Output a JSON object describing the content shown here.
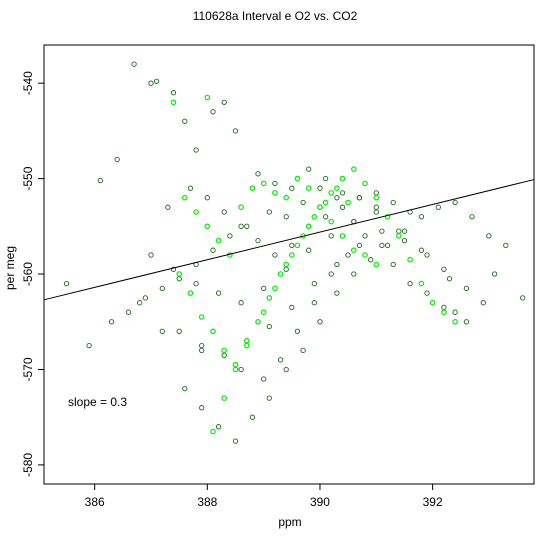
{
  "chart_data": {
    "type": "scatter",
    "title": "110628a   Interval e O2 vs. CO2",
    "xlabel": "ppm",
    "ylabel": "per meg",
    "xlim": [
      385.1,
      393.8
    ],
    "ylim": [
      -582.0,
      -536.0
    ],
    "xticks": [
      386,
      388,
      390,
      392
    ],
    "yticks": [
      -540,
      -550,
      -560,
      -570,
      -580
    ],
    "grid": false,
    "legend": "none",
    "annotation": "slope =  0.3",
    "fit_line": {
      "slope": 0.3,
      "x": [
        385.1,
        393.8
      ],
      "y": [
        -562.7,
        -550.1
      ]
    },
    "colors": {
      "dark": "#1a6b1a",
      "bright": "#00ee00",
      "line": "#000000",
      "axis": "#000000"
    },
    "series": [
      {
        "color": "#1a6b1a",
        "x": [
          386.7,
          387.0,
          387.4,
          387.6,
          387.8,
          388.1,
          388.3,
          388.5,
          387.1,
          386.4,
          386.1,
          385.5,
          385.9,
          386.3,
          386.8,
          387.2,
          387.9,
          388.6,
          389.0,
          389.3,
          389.6,
          389.9,
          390.2,
          390.5,
          390.8,
          391.1,
          391.3,
          391.6,
          391.9,
          392.2,
          392.4,
          392.6,
          392.9,
          393.1,
          393.3,
          393.6,
          388.9,
          389.2,
          389.5,
          389.8,
          390.1,
          390.4,
          390.7,
          391.0,
          389.1,
          389.4,
          389.7,
          390.0,
          390.3,
          390.6,
          388.7,
          388.4,
          388.1,
          387.8,
          387.5,
          387.2,
          386.9,
          386.6,
          387.6,
          387.9,
          388.2,
          388.5,
          388.8,
          389.1,
          389.4,
          389.7,
          390.0,
          390.3,
          390.6,
          390.9,
          391.2,
          391.5,
          391.8,
          392.1,
          392.4,
          392.7,
          393.0,
          387.3,
          387.7,
          388.0,
          388.3,
          388.6,
          388.9,
          389.2,
          389.5,
          389.8,
          390.1,
          390.4,
          390.7,
          391.0,
          391.3,
          391.6,
          387.0,
          387.4,
          387.8,
          388.2,
          388.6,
          389.0,
          389.4,
          389.8,
          390.2,
          390.6,
          391.0,
          391.4,
          391.8,
          392.2,
          392.6,
          387.5,
          387.9,
          388.3,
          388.7,
          389.1,
          389.5,
          389.9,
          390.3,
          390.7,
          391.1,
          391.5,
          391.9,
          392.3
        ],
        "y": [
          -538.0,
          -540.0,
          -541.0,
          -544.0,
          -547.0,
          -543.0,
          -542.0,
          -545.0,
          -539.8,
          -548.0,
          -550.2,
          -561.0,
          -567.5,
          -565.0,
          -563.0,
          -566.0,
          -568.0,
          -570.0,
          -571.0,
          -569.0,
          -566.0,
          -563.0,
          -560.0,
          -558.0,
          -556.0,
          -557.0,
          -559.0,
          -561.0,
          -562.0,
          -563.5,
          -564.0,
          -565.0,
          -563.0,
          -560.0,
          -557.0,
          -562.5,
          -549.5,
          -550.5,
          -551.0,
          -549.0,
          -550.0,
          -551.5,
          -552.0,
          -553.0,
          -553.5,
          -554.0,
          -552.5,
          -551.0,
          -552.0,
          -554.5,
          -555.0,
          -556.0,
          -557.5,
          -559.0,
          -560.5,
          -561.5,
          -562.5,
          -564.0,
          -572.0,
          -574.0,
          -576.0,
          -577.5,
          -575.0,
          -573.0,
          -570.0,
          -568.0,
          -565.0,
          -562.0,
          -560.0,
          -558.5,
          -557.0,
          -555.5,
          -554.0,
          -553.0,
          -552.5,
          -554.0,
          -556.0,
          -553.0,
          -551.0,
          -552.0,
          -553.5,
          -555.0,
          -556.5,
          -558.0,
          -557.0,
          -555.0,
          -554.0,
          -553.0,
          -552.0,
          -551.5,
          -552.5,
          -553.5,
          -558.0,
          -559.5,
          -561.0,
          -562.0,
          -563.0,
          -561.5,
          -559.5,
          -557.5,
          -556.0,
          -554.5,
          -553.5,
          -555.5,
          -557.5,
          -559.5,
          -561.5,
          -566.0,
          -567.5,
          -568.5,
          -567.0,
          -565.5,
          -563.5,
          -561.0,
          -559.0,
          -557.0,
          -555.5,
          -556.5,
          -558.0,
          -560.5
        ]
      },
      {
        "color": "#00ee00",
        "x": [
          387.4,
          388.0,
          388.1,
          388.3,
          388.5,
          388.7,
          389.0,
          389.2,
          389.4,
          389.6,
          389.8,
          390.0,
          390.2,
          390.4,
          390.6,
          390.8,
          391.0,
          391.2,
          391.4,
          391.6,
          391.8,
          392.0,
          392.2,
          392.4,
          387.6,
          387.8,
          388.0,
          388.2,
          388.4,
          388.6,
          388.8,
          389.0,
          389.2,
          389.4,
          389.6,
          389.8,
          390.0,
          390.2,
          390.4,
          390.6,
          390.8,
          391.0,
          387.5,
          387.7,
          387.9,
          388.1,
          388.3,
          388.5,
          388.7,
          388.9,
          389.1,
          389.3,
          389.5,
          389.7,
          389.9,
          390.1,
          390.3,
          390.5
        ],
        "y": [
          -542.0,
          -541.5,
          -576.5,
          -573.0,
          -570.0,
          -567.0,
          -564.0,
          -561.5,
          -559.0,
          -557.0,
          -555.0,
          -553.0,
          -551.5,
          -550.0,
          -549.0,
          -550.5,
          -552.0,
          -554.0,
          -556.0,
          -558.5,
          -561.0,
          -563.0,
          -564.0,
          -565.0,
          -552.0,
          -553.5,
          -555.0,
          -556.5,
          -558.0,
          -553.0,
          -551.0,
          -550.5,
          -551.5,
          -552.0,
          -550.0,
          -551.0,
          -553.0,
          -554.5,
          -556.0,
          -557.5,
          -558.0,
          -559.0,
          -560.0,
          -562.0,
          -564.5,
          -566.0,
          -568.0,
          -569.5,
          -567.5,
          -565.0,
          -562.5,
          -560.0,
          -558.0,
          -556.0,
          -554.0,
          -552.5,
          -551.0,
          -552.5
        ]
      }
    ]
  }
}
